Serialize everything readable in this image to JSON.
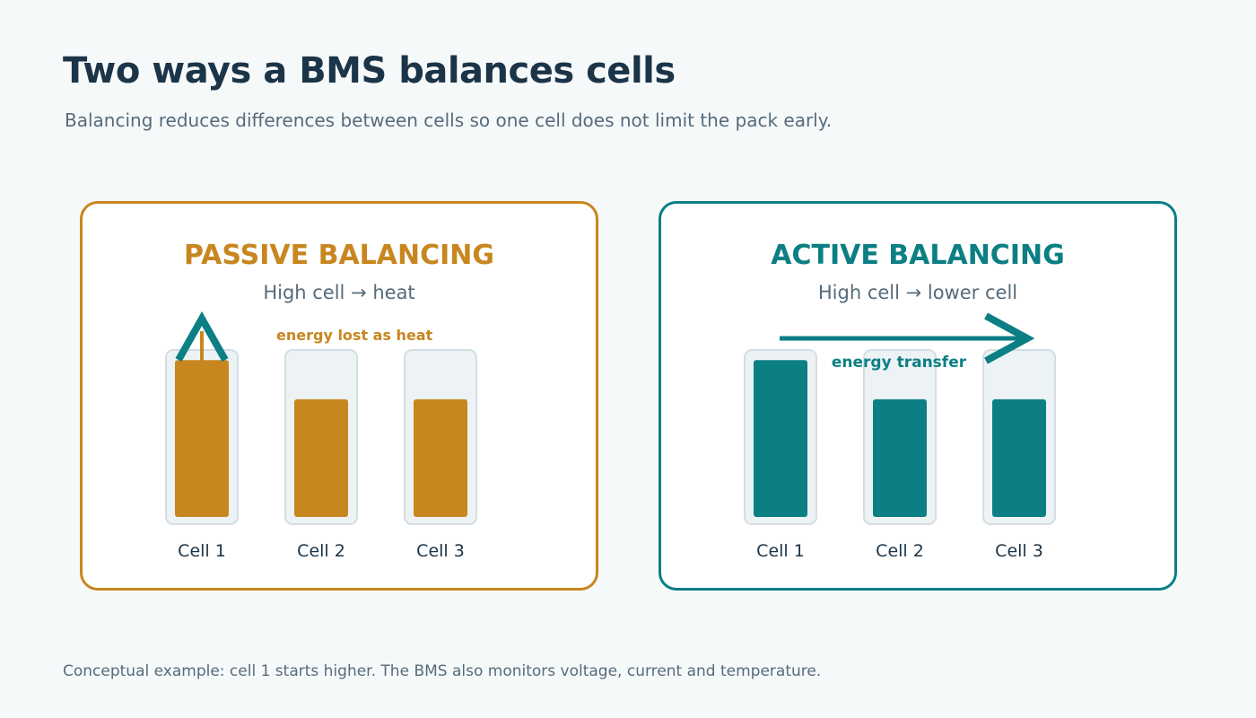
{
  "title": "Two ways a BMS balances cells",
  "subtitle": "Balancing reduces differences between cells so one cell does not limit the pack early.",
  "colors": {
    "passive": "#c8861f",
    "active": "#0b7f84",
    "title_text": "#1b3448",
    "muted_text": "#566b7b",
    "cell_holder": "#edf2f4",
    "background": "#f6f9fa"
  },
  "panels": {
    "passive": {
      "title": "PASSIVE BALANCING",
      "subtitle": "High cell → heat",
      "annotation": "energy lost as heat",
      "icon": "heat-arrow-up-icon",
      "cells": [
        {
          "label": "Cell 1",
          "level": 0.92
        },
        {
          "label": "Cell 2",
          "level": 0.69
        },
        {
          "label": "Cell 3",
          "level": 0.69
        }
      ]
    },
    "active": {
      "title": "ACTIVE BALANCING",
      "subtitle": "High cell → lower cell",
      "annotation": "energy transfer",
      "icon": "transfer-arrow-right-icon",
      "cells": [
        {
          "label": "Cell 1",
          "level": 0.92
        },
        {
          "label": "Cell 2",
          "level": 0.69
        },
        {
          "label": "Cell 3",
          "level": 0.69
        }
      ]
    }
  },
  "footnote": "Conceptual example: cell 1 starts higher. The BMS also monitors voltage, current and temperature."
}
